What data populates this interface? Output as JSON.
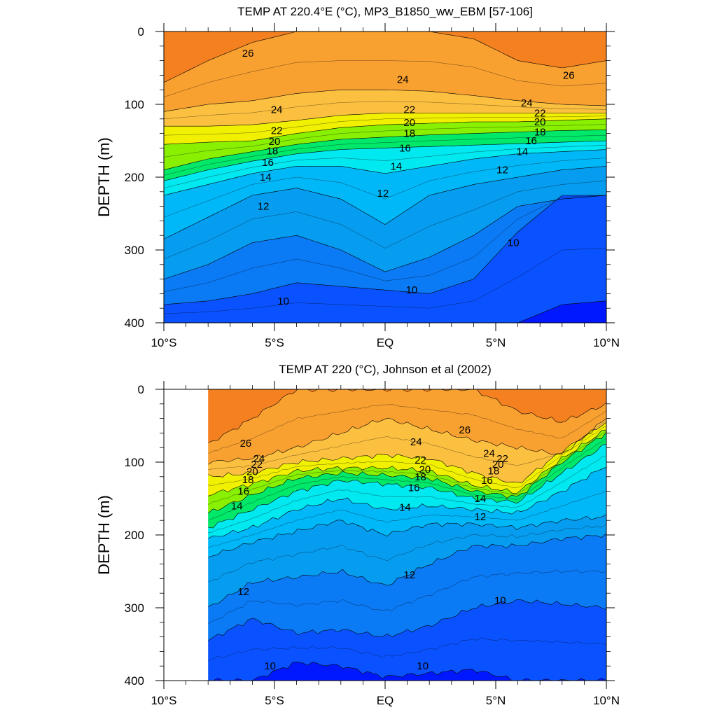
{
  "chart_data": [
    {
      "type": "heatmap",
      "title": "TEMP AT 220.4°E (°C), MP3_B1850_ww_EBM [57-106]",
      "ylabel": "DEPTH (m)",
      "xlabel": "",
      "xlim": [
        -10,
        10
      ],
      "ylim": [
        0,
        400
      ],
      "x_ticks": [
        -10,
        -5,
        0,
        5,
        10
      ],
      "x_tick_labels": [
        "10°S",
        "5°S",
        "EQ",
        "5°N",
        "10°N"
      ],
      "y_ticks": [
        0,
        100,
        200,
        300,
        400
      ],
      "y_tick_labels": [
        "0",
        "100",
        "200",
        "300",
        "400"
      ],
      "data_xlim": [
        -10,
        10
      ],
      "contour_levels": [
        9,
        10,
        11,
        12,
        13,
        14,
        15,
        16,
        17,
        18,
        19,
        20,
        21,
        22,
        23,
        24,
        25,
        26,
        27
      ],
      "x": [
        -10,
        -8,
        -6,
        -4,
        -2,
        0,
        2,
        4,
        6,
        8,
        10
      ],
      "isotherms": [
        {
          "level": 26,
          "depths": [
            70,
            40,
            15,
            0,
            0,
            0,
            0,
            10,
            40,
            50,
            40
          ]
        },
        {
          "level": 24,
          "depths": [
            110,
            100,
            95,
            85,
            80,
            80,
            82,
            88,
            95,
            100,
            102
          ]
        },
        {
          "level": 22,
          "depths": [
            130,
            130,
            128,
            122,
            115,
            112,
            112,
            112,
            112,
            112,
            112
          ]
        },
        {
          "level": 20,
          "depths": [
            155,
            152,
            150,
            140,
            132,
            128,
            126,
            124,
            124,
            122,
            120
          ]
        },
        {
          "level": 18,
          "depths": [
            190,
            175,
            165,
            155,
            148,
            145,
            142,
            140,
            138,
            136,
            135
          ]
        },
        {
          "level": 16,
          "depths": [
            205,
            190,
            178,
            168,
            162,
            160,
            158,
            156,
            154,
            152,
            150
          ]
        },
        {
          "level": 14,
          "depths": [
            225,
            210,
            195,
            185,
            185,
            195,
            185,
            175,
            168,
            165,
            162
          ]
        },
        {
          "level": 12,
          "depths": [
            285,
            255,
            225,
            215,
            230,
            265,
            225,
            210,
            200,
            190,
            185
          ]
        },
        {
          "level": 11,
          "depths": [
            340,
            320,
            290,
            280,
            300,
            330,
            310,
            280,
            240,
            230,
            225
          ]
        },
        {
          "level": 10,
          "depths": [
            375,
            370,
            360,
            345,
            350,
            355,
            360,
            340,
            275,
            225,
            225
          ]
        },
        {
          "level": 9,
          "depths": [
            400,
            400,
            400,
            400,
            400,
            400,
            400,
            400,
            400,
            375,
            370
          ]
        }
      ],
      "contour_labels": [
        {
          "text": "26",
          "x": -6.2,
          "y": 30
        },
        {
          "text": "24",
          "x": -4.9,
          "y": 107
        },
        {
          "text": "22",
          "x": -4.9,
          "y": 136
        },
        {
          "text": "20",
          "x": -5.0,
          "y": 151
        },
        {
          "text": "18",
          "x": -5.1,
          "y": 164
        },
        {
          "text": "16",
          "x": -5.3,
          "y": 180
        },
        {
          "text": "14",
          "x": -5.4,
          "y": 200
        },
        {
          "text": "12",
          "x": -5.5,
          "y": 240
        },
        {
          "text": "10",
          "x": -4.6,
          "y": 370
        },
        {
          "text": "24",
          "x": 0.8,
          "y": 66
        },
        {
          "text": "22",
          "x": 1.1,
          "y": 107
        },
        {
          "text": "20",
          "x": 1.1,
          "y": 125
        },
        {
          "text": "18",
          "x": 1.1,
          "y": 140
        },
        {
          "text": "16",
          "x": 0.9,
          "y": 160
        },
        {
          "text": "14",
          "x": 0.5,
          "y": 185
        },
        {
          "text": "12",
          "x": -0.1,
          "y": 222
        },
        {
          "text": "10",
          "x": 1.2,
          "y": 355
        },
        {
          "text": "26",
          "x": 8.3,
          "y": 60
        },
        {
          "text": "24",
          "x": 6.4,
          "y": 98
        },
        {
          "text": "22",
          "x": 7.0,
          "y": 112
        },
        {
          "text": "20",
          "x": 7.0,
          "y": 124
        },
        {
          "text": "18",
          "x": 7.0,
          "y": 138
        },
        {
          "text": "16",
          "x": 6.6,
          "y": 150
        },
        {
          "text": "14",
          "x": 6.2,
          "y": 165
        },
        {
          "text": "12",
          "x": 5.3,
          "y": 190
        },
        {
          "text": "10",
          "x": 5.8,
          "y": 290
        }
      ]
    },
    {
      "type": "heatmap",
      "title": "TEMP AT 220 (°C), Johnson et al (2002)",
      "ylabel": "DEPTH (m)",
      "xlabel": "",
      "xlim": [
        -10,
        10
      ],
      "ylim": [
        0,
        400
      ],
      "x_ticks": [
        -10,
        -5,
        0,
        5,
        10
      ],
      "x_tick_labels": [
        "10°S",
        "5°S",
        "EQ",
        "5°N",
        "10°N"
      ],
      "y_ticks": [
        0,
        100,
        200,
        300,
        400
      ],
      "y_tick_labels": [
        "0",
        "100",
        "200",
        "300",
        "400"
      ],
      "data_xlim": [
        -8,
        10
      ],
      "contour_levels": [
        9,
        10,
        11,
        12,
        13,
        14,
        15,
        16,
        17,
        18,
        19,
        20,
        21,
        22,
        23,
        24,
        25,
        26,
        27
      ],
      "x": [
        -8,
        -6,
        -4,
        -2,
        0,
        2,
        4,
        6,
        8,
        10
      ],
      "isotherms": [
        {
          "level": 26,
          "depths": [
            75,
            40,
            0,
            0,
            0,
            0,
            0,
            30,
            45,
            20
          ]
        },
        {
          "level": 24,
          "depths": [
            100,
            95,
            80,
            60,
            40,
            55,
            70,
            80,
            90,
            40
          ]
        },
        {
          "level": 22,
          "depths": [
            120,
            115,
            100,
            95,
            90,
            95,
            115,
            130,
            85,
            45
          ]
        },
        {
          "level": 20,
          "depths": [
            145,
            130,
            112,
            108,
            108,
            112,
            132,
            142,
            95,
            55
          ]
        },
        {
          "level": 18,
          "depths": [
            170,
            145,
            122,
            115,
            118,
            122,
            140,
            148,
            100,
            60
          ]
        },
        {
          "level": 16,
          "depths": [
            190,
            165,
            140,
            125,
            130,
            135,
            150,
            155,
            115,
            75
          ]
        },
        {
          "level": 14,
          "depths": [
            205,
            190,
            165,
            150,
            165,
            160,
            165,
            170,
            140,
            105
          ]
        },
        {
          "level": 12,
          "depths": [
            230,
            210,
            195,
            180,
            200,
            185,
            185,
            190,
            180,
            175
          ]
        },
        {
          "level": 11,
          "depths": [
            300,
            265,
            258,
            250,
            270,
            240,
            215,
            215,
            205,
            200
          ]
        },
        {
          "level": 10,
          "depths": [
            345,
            315,
            335,
            330,
            340,
            325,
            300,
            290,
            295,
            300
          ]
        },
        {
          "level": 9,
          "depths": [
            400,
            400,
            375,
            380,
            395,
            390,
            385,
            400,
            400,
            400
          ]
        }
      ],
      "contour_labels": [
        {
          "text": "26",
          "x": -6.3,
          "y": 74
        },
        {
          "text": "24",
          "x": -5.7,
          "y": 95
        },
        {
          "text": "22",
          "x": -5.8,
          "y": 103
        },
        {
          "text": "20",
          "x": -6.0,
          "y": 113
        },
        {
          "text": "18",
          "x": -6.2,
          "y": 124
        },
        {
          "text": "16",
          "x": -6.4,
          "y": 140
        },
        {
          "text": "14",
          "x": -6.7,
          "y": 160
        },
        {
          "text": "12",
          "x": -6.4,
          "y": 278
        },
        {
          "text": "10",
          "x": -5.2,
          "y": 380
        },
        {
          "text": "24",
          "x": 1.4,
          "y": 72
        },
        {
          "text": "22",
          "x": 1.6,
          "y": 97
        },
        {
          "text": "20",
          "x": 1.8,
          "y": 110
        },
        {
          "text": "18",
          "x": 1.6,
          "y": 120
        },
        {
          "text": "16",
          "x": 1.3,
          "y": 135
        },
        {
          "text": "14",
          "x": 0.9,
          "y": 162
        },
        {
          "text": "12",
          "x": 1.1,
          "y": 255
        },
        {
          "text": "10",
          "x": 1.7,
          "y": 380
        },
        {
          "text": "26",
          "x": 3.6,
          "y": 56
        },
        {
          "text": "24",
          "x": 4.7,
          "y": 88
        },
        {
          "text": "22",
          "x": 5.3,
          "y": 95
        },
        {
          "text": "20",
          "x": 5.1,
          "y": 103
        },
        {
          "text": "18",
          "x": 4.9,
          "y": 112
        },
        {
          "text": "16",
          "x": 4.6,
          "y": 125
        },
        {
          "text": "14",
          "x": 4.3,
          "y": 150
        },
        {
          "text": "12",
          "x": 4.3,
          "y": 175
        },
        {
          "text": "10",
          "x": 5.2,
          "y": 290
        }
      ]
    }
  ]
}
